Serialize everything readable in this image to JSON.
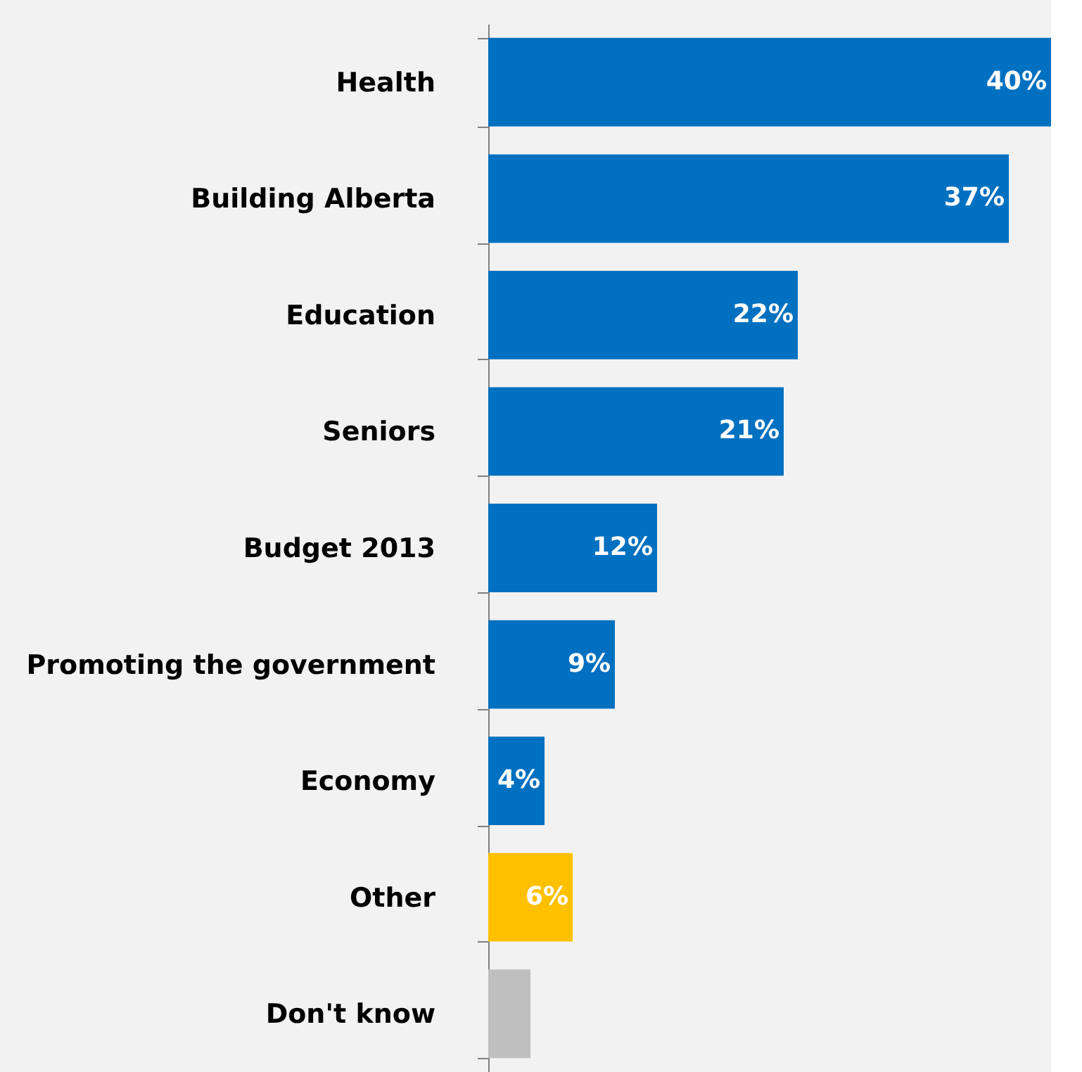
{
  "chart_data": {
    "type": "bar",
    "orientation": "horizontal",
    "categories": [
      "Health",
      "Building Alberta",
      "Education",
      "Seniors",
      "Budget 2013",
      "Promoting the government",
      "Economy",
      "Other",
      "Don't know"
    ],
    "values": [
      40,
      37,
      22,
      21,
      12,
      9,
      4,
      6,
      3
    ],
    "colors": [
      "#0070c0",
      "#0070c0",
      "#0070c0",
      "#0070c0",
      "#0070c0",
      "#0070c0",
      "#0070c0",
      "#ffc000",
      "#bfbfbf"
    ],
    "value_labels": [
      "40%",
      "37%",
      "22%",
      "21%",
      "12%",
      "9%",
      "4%",
      "6%",
      null
    ],
    "grid": false
  }
}
